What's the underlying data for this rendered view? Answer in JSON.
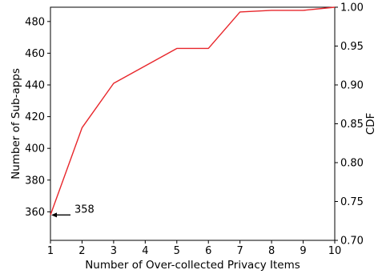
{
  "chart_data": {
    "type": "line",
    "xlabel": "Number of Over-collected Privacy Items",
    "ylabel": "Number of Sub-apps",
    "y2label": "CDF",
    "x": [
      1,
      2,
      3,
      4,
      5,
      6,
      7,
      8,
      9,
      10
    ],
    "series": [
      {
        "color": "#e8262b",
        "values": [
          358,
          413,
          441,
          452,
          463,
          463,
          486,
          487,
          487,
          489
        ]
      }
    ],
    "xlim": [
      1,
      10
    ],
    "ylim": [
      342,
      489
    ],
    "y2lim": [
      0.7,
      1.0
    ],
    "xticks": [
      "1",
      "2",
      "3",
      "4",
      "5",
      "6",
      "7",
      "8",
      "9",
      "10"
    ],
    "yticks": [
      "360",
      "380",
      "400",
      "420",
      "440",
      "460",
      "480"
    ],
    "y2ticks": [
      "0.70",
      "0.75",
      "0.80",
      "0.85",
      "0.90",
      "0.95",
      "1.00"
    ],
    "grid": false,
    "annotation": {
      "text": "358",
      "x": 1,
      "y": 358,
      "arrow": true
    }
  }
}
